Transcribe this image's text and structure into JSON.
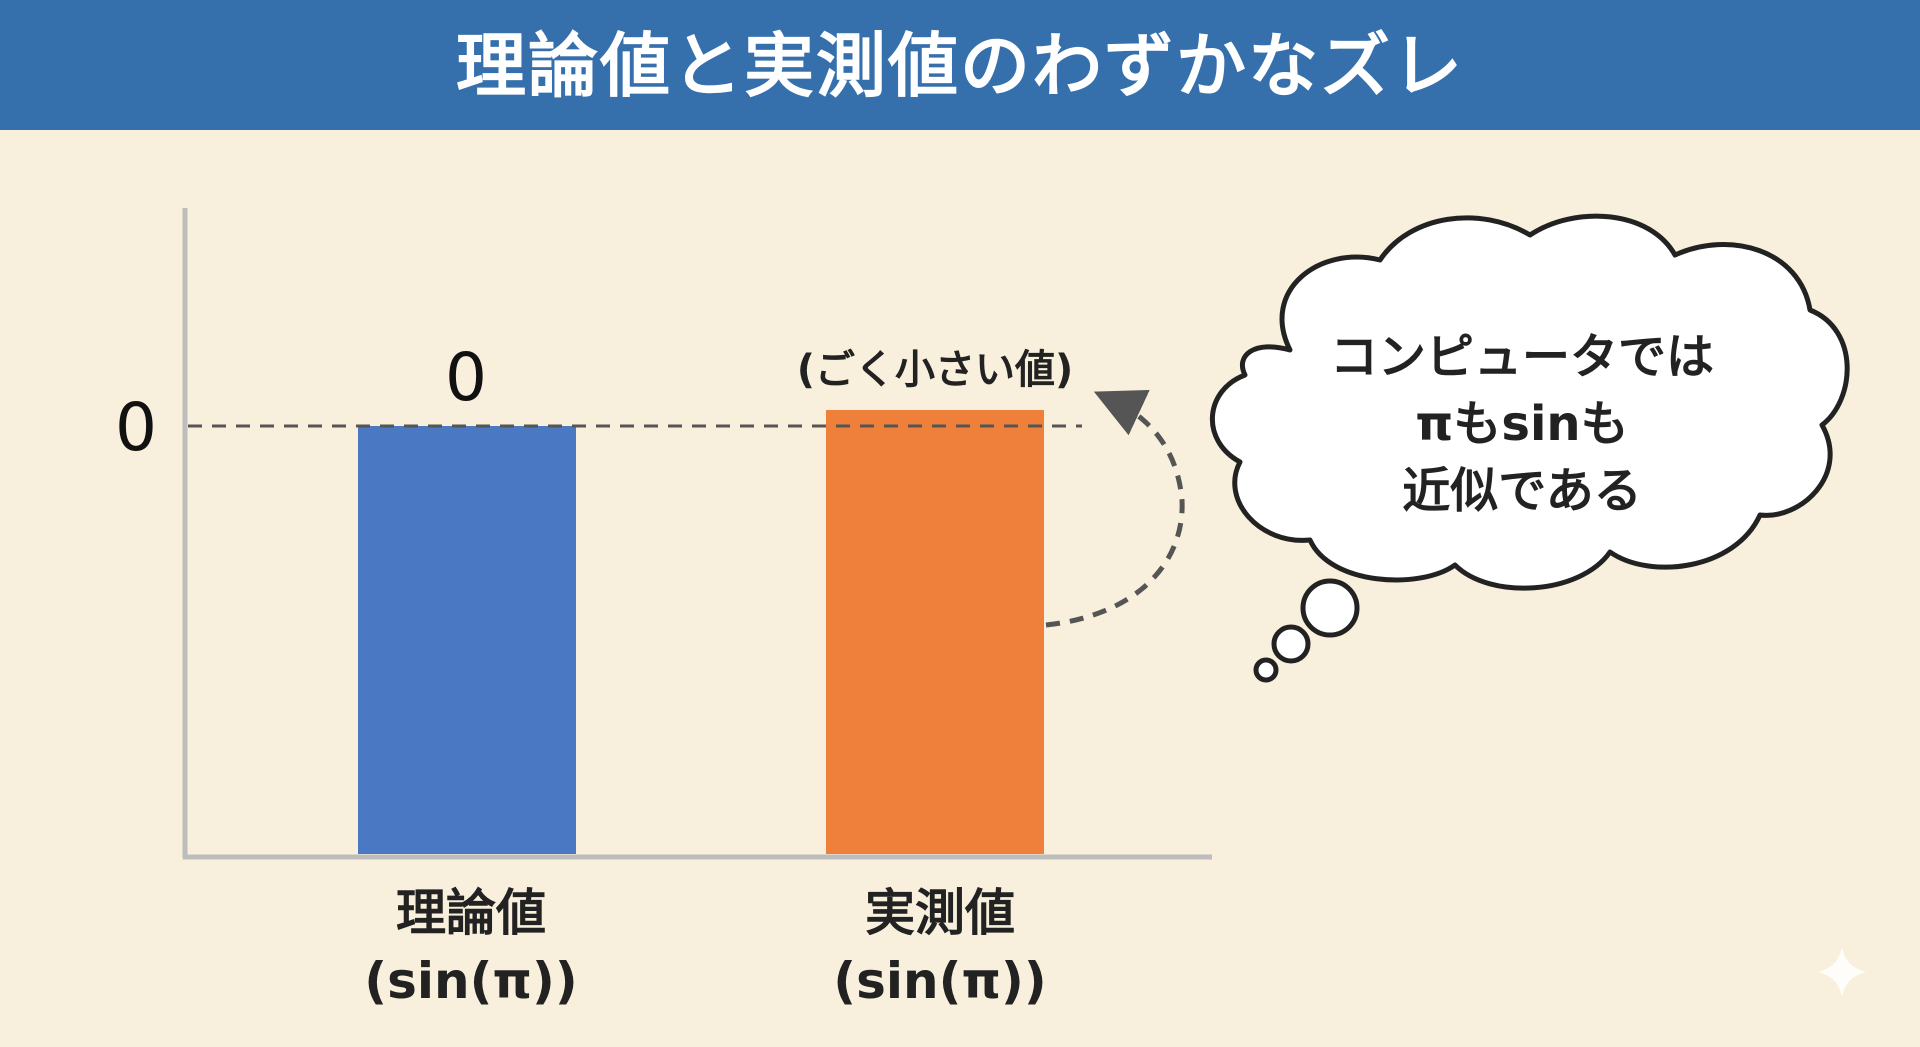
{
  "title": "理論値と実測値のわずかなズレ",
  "chart_data": {
    "type": "bar",
    "y_axis_labels": [
      "0"
    ],
    "bars": [
      {
        "name": "理論値",
        "value_label": "0",
        "category_line1": "理論値",
        "category_line2": "(sin(π))",
        "color": "#4a78c2"
      },
      {
        "name": "実測値",
        "value_label": "(ごく小さい値)",
        "category_line1": "実測値",
        "category_line2": "(sin(π))",
        "color": "#ee803c"
      }
    ]
  },
  "thought_bubble": {
    "lines": [
      "コンピュータでは",
      "πもsinも",
      "近似である"
    ]
  },
  "colors": {
    "header": "#3570ad",
    "background": "#f8f0dc",
    "axis": "#bdbdbd",
    "dashed": "#555555"
  },
  "icons": {
    "corner": "sparkle-icon"
  }
}
